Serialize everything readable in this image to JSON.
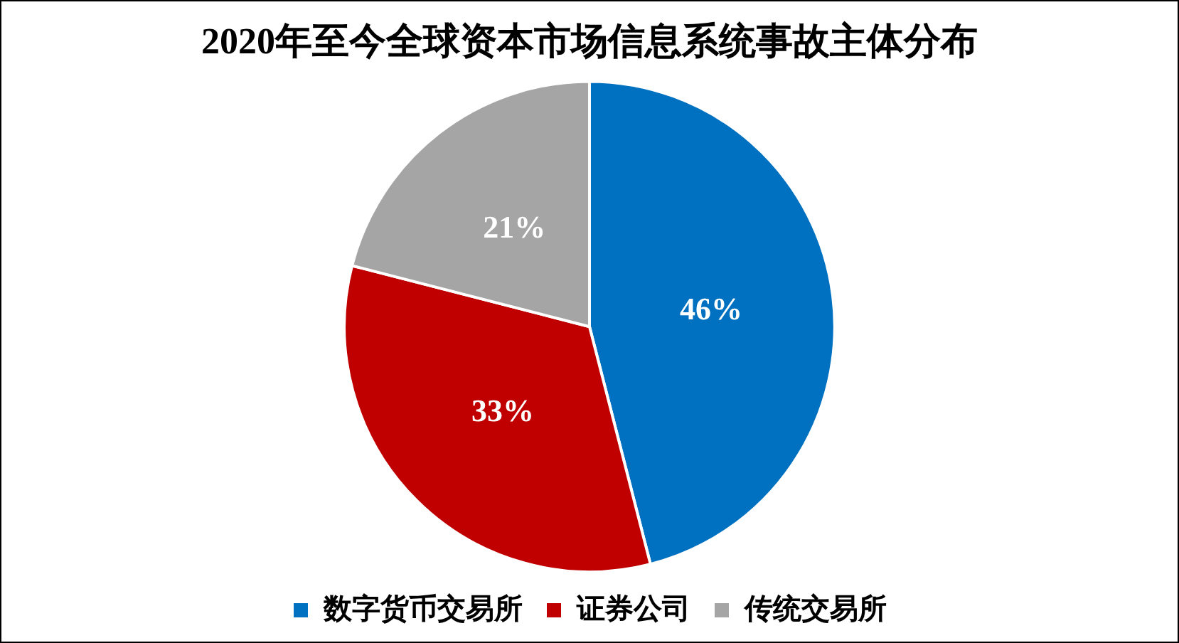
{
  "chart_data": {
    "type": "pie",
    "title": "2020年至今全球资本市场信息系统事故主体分布",
    "categories": [
      "数字货币交易所",
      "证券公司",
      "传统交易所"
    ],
    "values": [
      46,
      33,
      21
    ],
    "colors": [
      "#0070c0",
      "#c00000",
      "#a5a5a5"
    ],
    "value_labels": [
      "46%",
      "33%",
      "21%"
    ],
    "legend": "bottom"
  }
}
